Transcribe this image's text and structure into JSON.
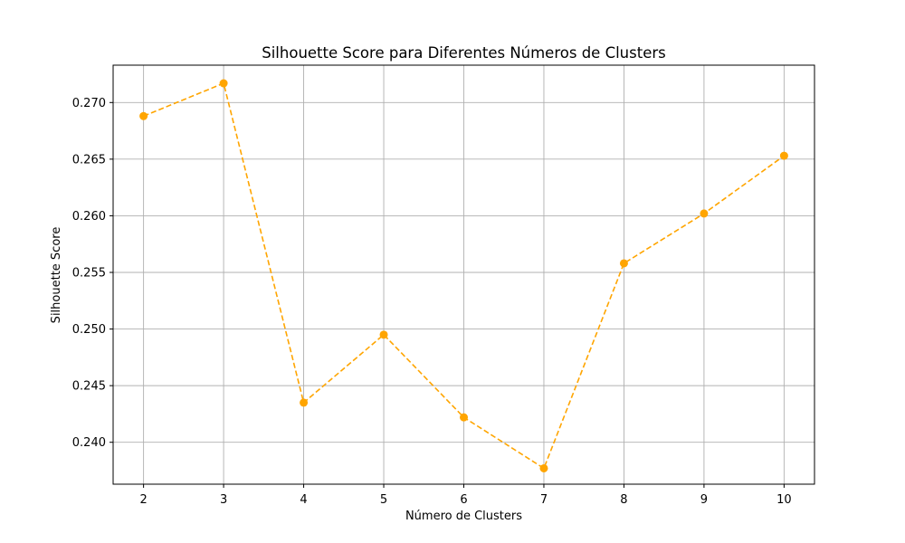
{
  "chart_data": {
    "type": "line",
    "title": "Silhouette Score para Diferentes Números de Clusters",
    "xlabel": "Número de Clusters",
    "ylabel": "Silhouette Score",
    "x": [
      2,
      3,
      4,
      5,
      6,
      7,
      8,
      9,
      10
    ],
    "series": [
      {
        "values": [
          0.2688,
          0.2717,
          0.2435,
          0.2495,
          0.2422,
          0.2377,
          0.2558,
          0.2602,
          0.2653
        ],
        "color": "#ffa500",
        "line_style": "dashed",
        "marker": "circle"
      }
    ],
    "xticks": [
      "2",
      "3",
      "4",
      "5",
      "6",
      "7",
      "8",
      "9",
      "10"
    ],
    "yticks": [
      "0.240",
      "0.245",
      "0.250",
      "0.255",
      "0.260",
      "0.265",
      "0.270"
    ],
    "xlim": [
      1.62,
      10.38
    ],
    "ylim": [
      0.2363,
      0.2733
    ],
    "grid": true,
    "legend": false
  }
}
